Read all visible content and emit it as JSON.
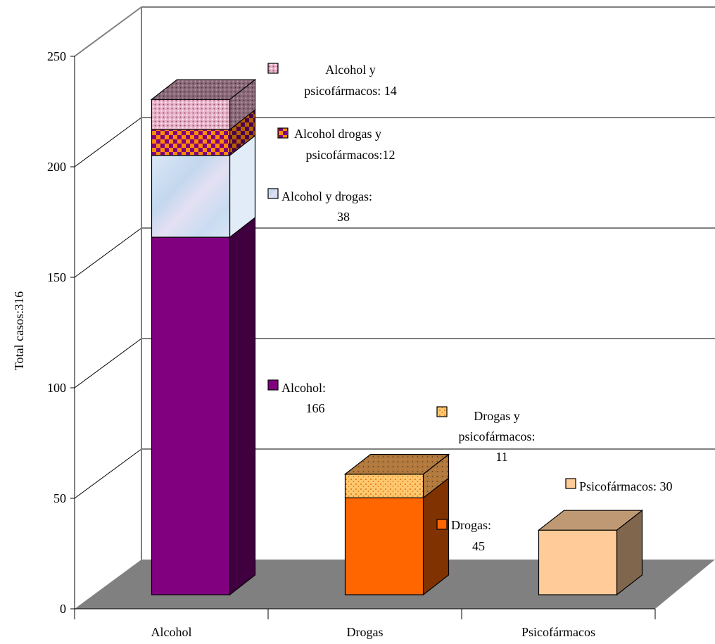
{
  "chart_data": {
    "type": "bar",
    "stacked": true,
    "three_d": true,
    "title": "",
    "xlabel": "",
    "ylabel": "Total casos:316",
    "ylim": [
      0,
      250
    ],
    "yticks": [
      0,
      50,
      100,
      150,
      200,
      250
    ],
    "grid": true,
    "categories": [
      "Alcohol",
      "Drogas",
      "Psicofármacos"
    ],
    "segments": [
      {
        "category": "Alcohol",
        "value": 166,
        "label_lines": [
          "Alcohol:",
          "166"
        ],
        "color": "#800080",
        "pattern": "solid"
      },
      {
        "category": "Alcohol",
        "value": 38,
        "label_lines": [
          "Alcohol y drogas:",
          "38"
        ],
        "color": "#cfe0f2",
        "pattern": "marble"
      },
      {
        "category": "Alcohol",
        "value": 12,
        "label_lines": [
          "Alcohol drogas y",
          "psicofármacos:12"
        ],
        "color": "#ff6600",
        "pattern": "checker"
      },
      {
        "category": "Alcohol",
        "value": 14,
        "label_lines": [
          "Alcohol y",
          "psicofármacos: 14"
        ],
        "color": "#e8b0c8",
        "pattern": "dots"
      },
      {
        "category": "Drogas",
        "value": 45,
        "label_lines": [
          "Drogas:",
          "45"
        ],
        "color": "#ff6600",
        "pattern": "solid"
      },
      {
        "category": "Drogas",
        "value": 11,
        "label_lines": [
          "Drogas y",
          "psicofármacos:",
          "11"
        ],
        "color": "#ffb347",
        "pattern": "speckle"
      },
      {
        "category": "Psicofármacos",
        "value": 30,
        "label_lines": [
          "Psicofármacos: 30"
        ],
        "color": "#ffcc99",
        "pattern": "solid"
      }
    ]
  }
}
